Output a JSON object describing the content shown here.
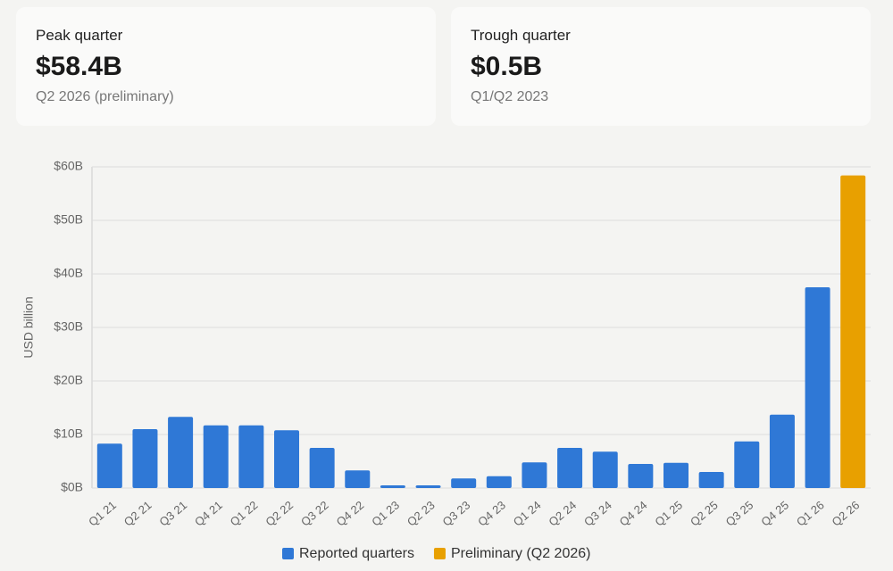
{
  "cards": [
    {
      "label": "Peak quarter",
      "value": "$58.4B",
      "note": "Q2 2026 (preliminary)"
    },
    {
      "label": "Trough quarter",
      "value": "$0.5B",
      "note": "Q1/Q2 2023"
    }
  ],
  "chart_data": {
    "type": "bar",
    "y_label": "USD billion",
    "categories": [
      "Q1 21",
      "Q2 21",
      "Q3 21",
      "Q4 21",
      "Q1 22",
      "Q2 22",
      "Q3 22",
      "Q4 22",
      "Q1 23",
      "Q2 23",
      "Q3 23",
      "Q4 23",
      "Q1 24",
      "Q2 24",
      "Q3 24",
      "Q4 24",
      "Q1 25",
      "Q2 25",
      "Q3 25",
      "Q4 25",
      "Q1 26",
      "Q2 26"
    ],
    "series": [
      {
        "name": "Reported quarters",
        "color": "#2f78d6",
        "values": [
          8.3,
          11.0,
          13.3,
          11.7,
          11.7,
          10.8,
          7.5,
          3.3,
          0.5,
          0.5,
          1.8,
          2.2,
          4.8,
          7.5,
          6.8,
          4.5,
          4.7,
          3.0,
          8.7,
          13.7,
          37.5,
          null
        ]
      },
      {
        "name": "Preliminary (Q2 2026)",
        "color": "#e8a000",
        "values": [
          null,
          null,
          null,
          null,
          null,
          null,
          null,
          null,
          null,
          null,
          null,
          null,
          null,
          null,
          null,
          null,
          null,
          null,
          null,
          null,
          null,
          58.4
        ]
      }
    ],
    "ylim": [
      0,
      60
    ],
    "yticks": [
      {
        "value": 0,
        "label": "$0B"
      },
      {
        "value": 10,
        "label": "$10B"
      },
      {
        "value": 20,
        "label": "$20B"
      },
      {
        "value": 30,
        "label": "$30B"
      },
      {
        "value": 40,
        "label": "$40B"
      },
      {
        "value": 50,
        "label": "$50B"
      },
      {
        "value": 60,
        "label": "$60B"
      }
    ],
    "grid": true
  }
}
